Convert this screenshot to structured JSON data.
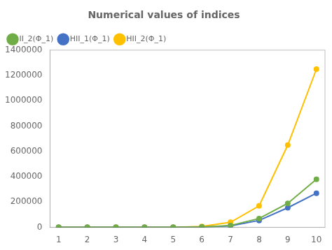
{
  "chart_data": {
    "type": "line",
    "title": "Numerical values of indices",
    "x": [
      1,
      2,
      3,
      4,
      5,
      6,
      7,
      8,
      9,
      10
    ],
    "series": [
      {
        "name": "II_2(Φ_1)",
        "color": "#70ad47",
        "values": [
          2,
          6,
          20,
          80,
          400,
          3000,
          15000,
          70000,
          190000,
          380000
        ]
      },
      {
        "name": "HII_1(Φ_1)",
        "color": "#4472c4",
        "values": [
          1,
          4,
          14,
          55,
          280,
          2200,
          11000,
          55000,
          155000,
          270000
        ]
      },
      {
        "name": "HII_2(Φ_1)",
        "color": "#ffc000",
        "values": [
          3,
          10,
          40,
          180,
          1200,
          8000,
          40000,
          170000,
          650000,
          1250000
        ]
      }
    ],
    "xlim": [
      0.7,
      10.3
    ],
    "ylim": [
      0,
      1400000
    ],
    "xticks": [
      1,
      2,
      3,
      4,
      5,
      6,
      7,
      8,
      9,
      10
    ],
    "yticks": [
      0,
      200000,
      400000,
      600000,
      800000,
      1000000,
      1200000,
      1400000
    ],
    "grid": false,
    "legend": "upper left",
    "marker": "circle"
  }
}
